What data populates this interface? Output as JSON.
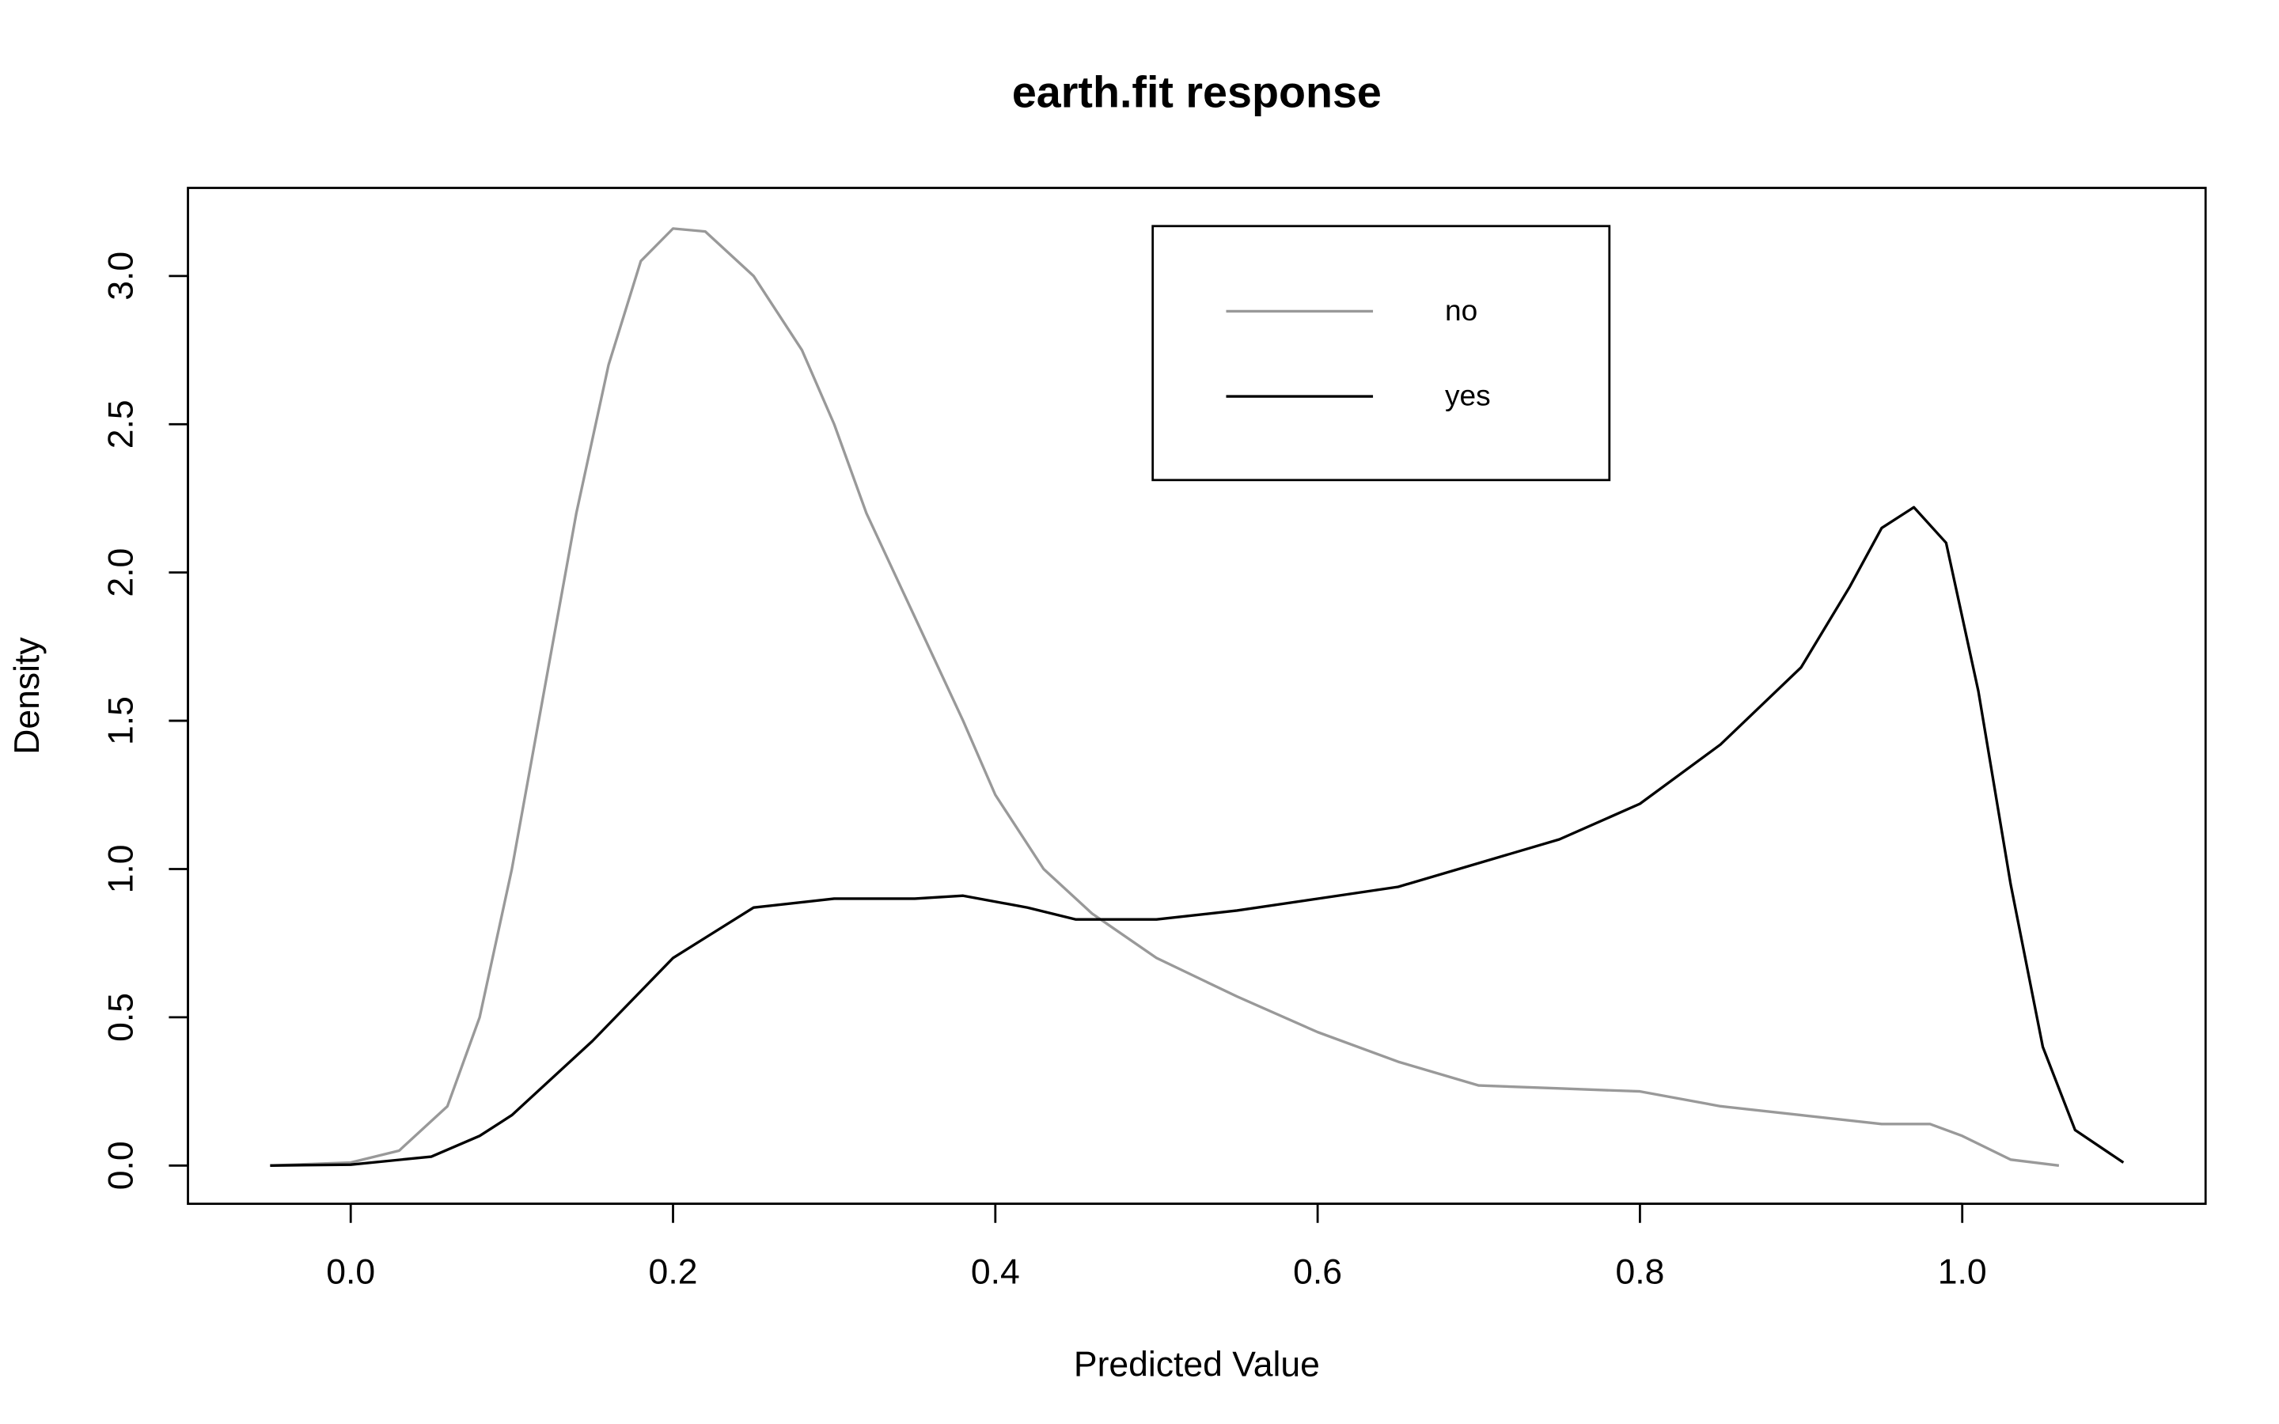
{
  "chart_data": {
    "type": "line",
    "title": "earth.fit response",
    "x_label": "Predicted Value",
    "y_label": "Density",
    "xlim": [
      -0.101,
      1.151
    ],
    "ylim": [
      -0.129,
      3.297
    ],
    "xticks": [
      {
        "value": 0,
        "label": "0.0"
      },
      0.2,
      0.4,
      0.6,
      0.8,
      {
        "value": 1,
        "label": "1.0"
      }
    ],
    "yticks": [
      {
        "value": 0,
        "label": "0.0"
      },
      0.5,
      {
        "value": 1,
        "label": "1.0"
      },
      1.5,
      {
        "value": 2,
        "label": "2.0"
      },
      2.5,
      {
        "value": 3,
        "label": "3.0"
      }
    ],
    "grid": false,
    "legend_position": "top",
    "series": [
      {
        "name": "no",
        "color": "#999999",
        "x": [
          -0.05,
          0,
          0.03,
          0.06,
          0.08,
          0.1,
          0.12,
          0.14,
          0.16,
          0.18,
          0.2,
          0.22,
          0.25,
          0.28,
          0.3,
          0.32,
          0.35,
          0.38,
          0.4,
          0.43,
          0.46,
          0.5,
          0.55,
          0.6,
          0.65,
          0.7,
          0.75,
          0.8,
          0.85,
          0.9,
          0.95,
          0.98,
          1.0,
          1.03,
          1.06
        ],
        "values": [
          0,
          0.01,
          0.05,
          0.2,
          0.5,
          1.0,
          1.6,
          2.2,
          2.7,
          3.05,
          3.16,
          3.15,
          3.0,
          2.75,
          2.5,
          2.2,
          1.85,
          1.5,
          1.25,
          1.0,
          0.85,
          0.7,
          0.57,
          0.45,
          0.35,
          0.27,
          0.26,
          0.25,
          0.2,
          0.17,
          0.14,
          0.14,
          0.1,
          0.02,
          0
        ]
      },
      {
        "name": "yes",
        "color": "#000000",
        "x": [
          -0.05,
          0,
          0.05,
          0.08,
          0.1,
          0.15,
          0.2,
          0.25,
          0.3,
          0.35,
          0.38,
          0.42,
          0.45,
          0.5,
          0.55,
          0.6,
          0.65,
          0.7,
          0.75,
          0.8,
          0.85,
          0.9,
          0.93,
          0.95,
          0.97,
          0.99,
          1.01,
          1.03,
          1.05,
          1.07,
          1.1
        ],
        "values": [
          0,
          0.003,
          0.03,
          0.1,
          0.17,
          0.42,
          0.7,
          0.87,
          0.9,
          0.9,
          0.91,
          0.87,
          0.83,
          0.83,
          0.86,
          0.9,
          0.94,
          1.02,
          1.1,
          1.22,
          1.42,
          1.68,
          1.95,
          2.15,
          2.22,
          2.1,
          1.6,
          0.95,
          0.4,
          0.12,
          0.01
        ]
      }
    ]
  }
}
